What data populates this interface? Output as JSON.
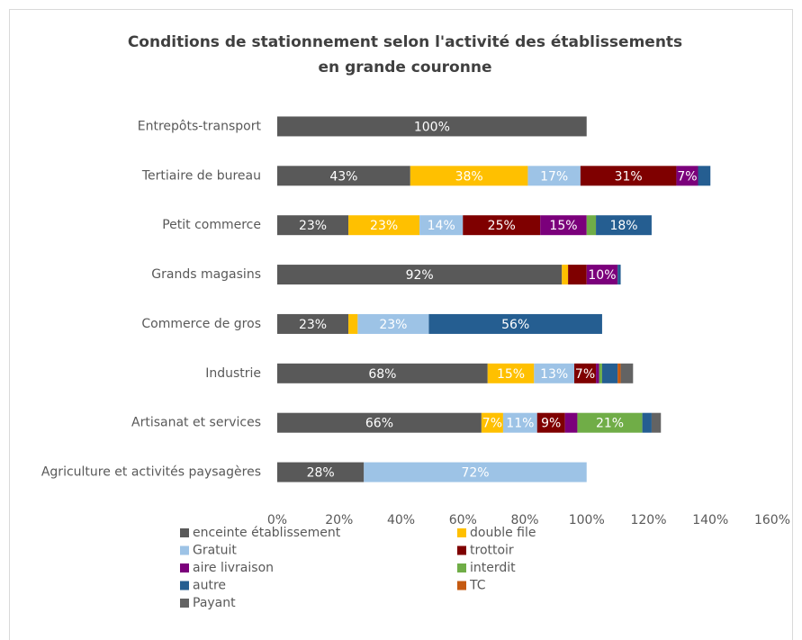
{
  "chart_data": {
    "type": "bar",
    "orientation": "horizontal",
    "stacked": true,
    "title": [
      "Conditions de stationnement selon l'activité des établissements",
      "en grande couronne"
    ],
    "categories": [
      "Entrepôts-transport",
      "Tertiaire de bureau",
      "Petit commerce",
      "Grands magasins",
      "Commerce de gros",
      "Industrie",
      "Artisanat et services",
      "Agriculture et activités paysagères"
    ],
    "xlim": [
      0,
      160
    ],
    "xticks": [
      {
        "value": 0,
        "label": "0%"
      },
      {
        "value": 20,
        "label": "20%"
      },
      {
        "value": 40,
        "label": "40%"
      },
      {
        "value": 60,
        "label": "60%"
      },
      {
        "value": 80,
        "label": "80%"
      },
      {
        "value": 100,
        "label": "100%"
      },
      {
        "value": 120,
        "label": "120%"
      },
      {
        "value": 140,
        "label": "140%"
      },
      {
        "value": 160,
        "label": "160%"
      }
    ],
    "grid": false,
    "legend": "bottom",
    "series": [
      {
        "name": "enceinte établissement",
        "color": "#595959",
        "values": [
          100,
          43,
          23,
          92,
          23,
          68,
          66,
          28
        ],
        "value_labels": [
          "100%",
          "43%",
          "23%",
          "92%",
          "23%",
          "68%",
          "66%",
          "28%"
        ]
      },
      {
        "name": "double file",
        "color": "#ffc000",
        "values": [
          0,
          38,
          23,
          2,
          3,
          15,
          7,
          0
        ],
        "value_labels": [
          null,
          "38%",
          "23%",
          null,
          null,
          "15%",
          "7%",
          null
        ]
      },
      {
        "name": "Gratuit",
        "color": "#9dc3e6",
        "values": [
          0,
          17,
          14,
          0,
          23,
          13,
          11,
          72
        ],
        "value_labels": [
          null,
          "17%",
          "14%",
          null,
          "23%",
          "13%",
          "11%",
          "72%"
        ]
      },
      {
        "name": "trottoir",
        "color": "#7f0000",
        "values": [
          0,
          31,
          25,
          6,
          0,
          7,
          9,
          0
        ],
        "value_labels": [
          null,
          "31%",
          "25%",
          null,
          null,
          "7%",
          "9%",
          null
        ]
      },
      {
        "name": "aire livraison",
        "color": "#7b007b",
        "values": [
          0,
          7,
          15,
          10,
          0,
          1,
          4,
          0
        ],
        "value_labels": [
          null,
          "7%",
          "15%",
          "10%",
          null,
          null,
          null,
          null
        ]
      },
      {
        "name": "interdit",
        "color": "#70ad47",
        "values": [
          0,
          0,
          3,
          0,
          0,
          1,
          21,
          0
        ],
        "value_labels": [
          null,
          null,
          null,
          null,
          null,
          null,
          "21%",
          null
        ]
      },
      {
        "name": "autre",
        "color": "#255e91",
        "values": [
          0,
          4,
          18,
          1,
          56,
          5,
          3,
          0
        ],
        "value_labels": [
          null,
          null,
          "18%",
          null,
          "56%",
          null,
          null,
          null
        ]
      },
      {
        "name": "TC",
        "color": "#c55a11",
        "values": [
          0,
          0,
          0,
          0,
          0,
          1,
          0,
          0
        ],
        "value_labels": [
          null,
          null,
          null,
          null,
          null,
          null,
          null,
          null
        ]
      },
      {
        "name": "Payant",
        "color": "#636363",
        "values": [
          0,
          0,
          0,
          0,
          0,
          4,
          3,
          0
        ],
        "value_labels": [
          null,
          null,
          null,
          null,
          null,
          null,
          null,
          null
        ]
      }
    ]
  }
}
